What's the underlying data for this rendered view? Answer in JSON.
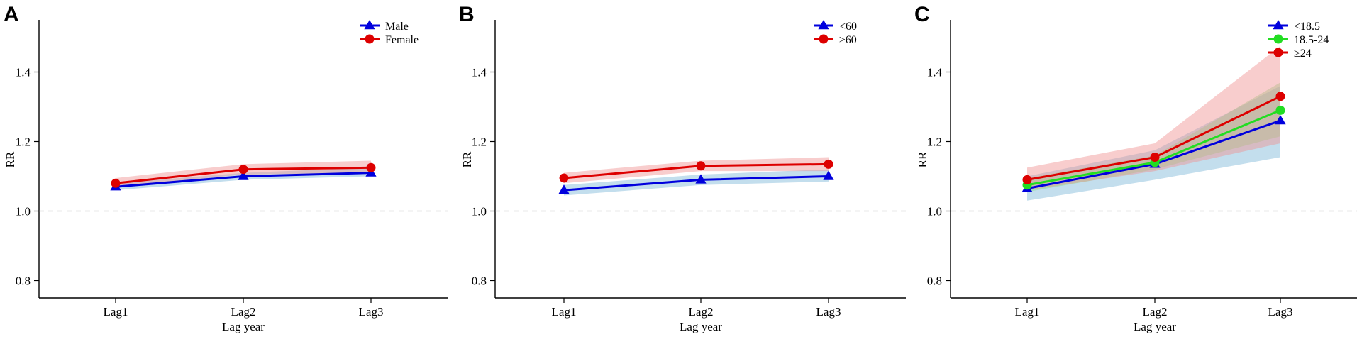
{
  "chart_data": [
    {
      "type": "line",
      "panel": "A",
      "xlabel": "Lag year",
      "ylabel": "RR",
      "categories": [
        "Lag1",
        "Lag2",
        "Lag3"
      ],
      "ylim": [
        0.75,
        1.55
      ],
      "yticks": [
        "0.8",
        "1.0",
        "1.2",
        "1.4"
      ],
      "reference_line": 1.0,
      "legend_position": "top-right",
      "series": [
        {
          "name": "Male",
          "marker": "triangle",
          "color": "#0000dd",
          "band_color": "#7ab6d6",
          "values": [
            1.07,
            1.1,
            1.11
          ],
          "lower": [
            1.06,
            1.09,
            1.1
          ],
          "upper": [
            1.08,
            1.11,
            1.125
          ]
        },
        {
          "name": "Female",
          "marker": "circle",
          "color": "#dd0000",
          "band_color": "#f09090",
          "values": [
            1.08,
            1.12,
            1.125
          ],
          "lower": [
            1.07,
            1.105,
            1.11
          ],
          "upper": [
            1.095,
            1.135,
            1.145
          ]
        }
      ]
    },
    {
      "type": "line",
      "panel": "B",
      "xlabel": "Lag year",
      "ylabel": "RR",
      "categories": [
        "Lag1",
        "Lag2",
        "Lag3"
      ],
      "ylim": [
        0.75,
        1.55
      ],
      "yticks": [
        "0.8",
        "1.0",
        "1.2",
        "1.4"
      ],
      "reference_line": 1.0,
      "legend_position": "top-right",
      "series": [
        {
          "name": "<60",
          "marker": "triangle",
          "color": "#0000dd",
          "band_color": "#7ab6d6",
          "values": [
            1.06,
            1.09,
            1.1
          ],
          "lower": [
            1.045,
            1.075,
            1.085
          ],
          "upper": [
            1.075,
            1.105,
            1.12
          ]
        },
        {
          "name": "≥60",
          "marker": "circle",
          "color": "#dd0000",
          "band_color": "#f09090",
          "values": [
            1.095,
            1.13,
            1.135
          ],
          "lower": [
            1.08,
            1.115,
            1.115
          ],
          "upper": [
            1.11,
            1.145,
            1.155
          ]
        }
      ]
    },
    {
      "type": "line",
      "panel": "C",
      "xlabel": "Lag year",
      "ylabel": "RR",
      "categories": [
        "Lag1",
        "Lag2",
        "Lag3"
      ],
      "ylim": [
        0.75,
        1.55
      ],
      "yticks": [
        "0.8",
        "1.0",
        "1.2",
        "1.4"
      ],
      "reference_line": 1.0,
      "legend_position": "top-right",
      "series": [
        {
          "name": "<18.5",
          "marker": "triangle",
          "color": "#0000dd",
          "band_color": "#7ab6d6",
          "values": [
            1.065,
            1.135,
            1.26
          ],
          "lower": [
            1.03,
            1.09,
            1.155
          ],
          "upper": [
            1.1,
            1.175,
            1.36
          ]
        },
        {
          "name": "18.5-24",
          "marker": "circle",
          "color": "#22dd22",
          "band_color": "#88dd88",
          "values": [
            1.075,
            1.14,
            1.29
          ],
          "lower": [
            1.055,
            1.12,
            1.215
          ],
          "upper": [
            1.095,
            1.16,
            1.37
          ]
        },
        {
          "name": "≥24",
          "marker": "circle",
          "color": "#dd0000",
          "band_color": "#f09090",
          "values": [
            1.09,
            1.155,
            1.33
          ],
          "lower": [
            1.06,
            1.115,
            1.195
          ],
          "upper": [
            1.125,
            1.195,
            1.475
          ]
        }
      ]
    }
  ]
}
